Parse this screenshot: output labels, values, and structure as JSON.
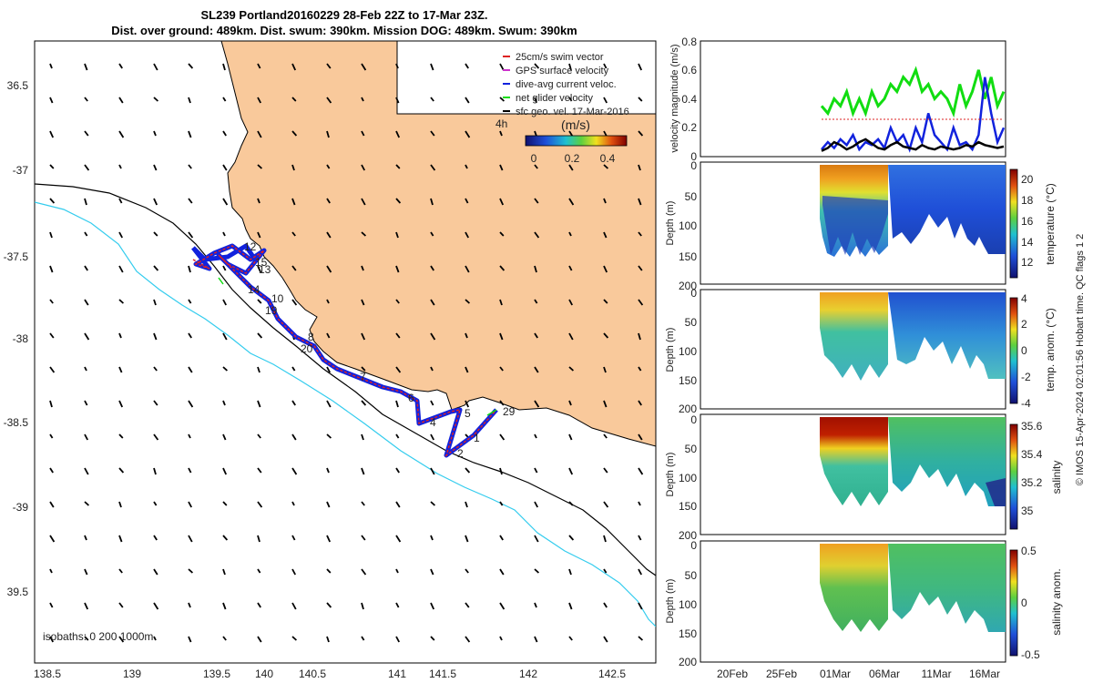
{
  "title": {
    "line1": "SL239 Portland20160229 28-Feb 22Z to 17-Mar 23Z.",
    "line2": "Dist. over ground: 489km. Dist. swum: 390km. Mission DOG: 489km. Swum: 390km"
  },
  "colors": {
    "land": "#f9c99b",
    "isobath_200": "#000000",
    "isobath_1000": "#33ccee",
    "track": "#dd2222",
    "dive_avg": "#1122dd",
    "net": "#11dd11",
    "gps": "#cc33cc"
  },
  "map": {
    "legend": [
      {
        "label": "25cm/s swim vector",
        "color": "#dd2222"
      },
      {
        "label": "GPS surface velocity",
        "color": "#cc33cc"
      },
      {
        "label": "dive-avg current veloc.",
        "color": "#1122dd"
      },
      {
        "label": "net glider velocity",
        "color": "#11dd11"
      },
      {
        "label": "sfc geo. vel. 17-Mar-2016",
        "color": "#000000"
      }
    ],
    "colorbar_title": "(m/s)",
    "colorbar_prefix": "4h",
    "colorbar_ticks": [
      "0",
      "0.2",
      "0.4"
    ],
    "isobath_label": "isobaths: 0   200  1000m",
    "xticks": [
      "138.5",
      "139",
      "139.5",
      "140",
      "140.5",
      "141",
      "141.5",
      "142",
      "142.5"
    ],
    "yticks": [
      "36.5",
      "-37",
      "-37.5",
      "-38",
      "-38.5",
      "-39",
      "39.5"
    ],
    "day_labels": [
      "1",
      "2",
      "4",
      "5",
      "6",
      "7",
      "8",
      "10",
      "12",
      "13",
      "14",
      "15",
      "19",
      "20",
      "29"
    ]
  },
  "chart_data": [
    {
      "type": "line",
      "title": "",
      "ylabel": "velocity magnitude (m/s)",
      "ylim": [
        0,
        0.8
      ],
      "yticks": [
        "0",
        "0.2",
        "0.4",
        "0.6",
        "0.8"
      ],
      "x_start_day": 29.0,
      "series": [
        {
          "name": "net glider velocity",
          "color": "#11dd11",
          "values": [
            0.35,
            0.3,
            0.4,
            0.35,
            0.45,
            0.3,
            0.4,
            0.3,
            0.45,
            0.35,
            0.4,
            0.5,
            0.45,
            0.55,
            0.5,
            0.6,
            0.45,
            0.5,
            0.4,
            0.45,
            0.4,
            0.3,
            0.5,
            0.35,
            0.45,
            0.6,
            0.4,
            0.55,
            0.35,
            0.45
          ]
        },
        {
          "name": "dive-avg current veloc.",
          "color": "#1122dd",
          "values": [
            0.05,
            0.1,
            0.06,
            0.12,
            0.08,
            0.15,
            0.05,
            0.1,
            0.08,
            0.12,
            0.06,
            0.2,
            0.1,
            0.15,
            0.05,
            0.2,
            0.1,
            0.3,
            0.15,
            0.1,
            0.05,
            0.2,
            0.08,
            0.1,
            0.05,
            0.15,
            0.55,
            0.3,
            0.1,
            0.2
          ]
        },
        {
          "name": "sfc geo. vel.",
          "color": "#000000",
          "values": [
            0.04,
            0.06,
            0.1,
            0.08,
            0.05,
            0.07,
            0.1,
            0.12,
            0.09,
            0.06,
            0.05,
            0.08,
            0.1,
            0.07,
            0.06,
            0.05,
            0.08,
            0.06,
            0.05,
            0.07,
            0.06,
            0.05,
            0.06,
            0.08,
            0.07,
            0.1,
            0.08,
            0.07,
            0.06,
            0.07
          ]
        }
      ]
    },
    {
      "type": "heatmap",
      "ylabel": "Depth (m)",
      "cbar_label": "temperature (°C)",
      "cbar_ticks": [
        "12",
        "14",
        "16",
        "18",
        "20"
      ],
      "yticks": [
        "0",
        "50",
        "100",
        "150",
        "200"
      ]
    },
    {
      "type": "heatmap",
      "ylabel": "Depth (m)",
      "cbar_label": "temp. anom. (°C)",
      "cbar_ticks": [
        "-4",
        "-2",
        "0",
        "2",
        "4"
      ],
      "yticks": [
        "0",
        "50",
        "100",
        "150",
        "200"
      ]
    },
    {
      "type": "heatmap",
      "ylabel": "Depth (m)",
      "cbar_label": "salinity",
      "cbar_ticks": [
        "35",
        "35.2",
        "35.4",
        "35.6"
      ],
      "yticks": [
        "0",
        "50",
        "100",
        "150",
        "200"
      ]
    },
    {
      "type": "heatmap",
      "ylabel": "Depth (m)",
      "cbar_label": "salinity anom.",
      "cbar_ticks": [
        "-0.5",
        "0",
        "0.5"
      ],
      "yticks": [
        "0",
        "50",
        "100",
        "150",
        "200"
      ]
    }
  ],
  "time_axis": {
    "ticks": [
      "20Feb",
      "25Feb",
      "01Mar",
      "06Mar",
      "11Mar",
      "16Mar"
    ]
  },
  "credit": "© IMOS 15-Apr-2024 02:01:56 Hobart time. QC flags 1  2"
}
